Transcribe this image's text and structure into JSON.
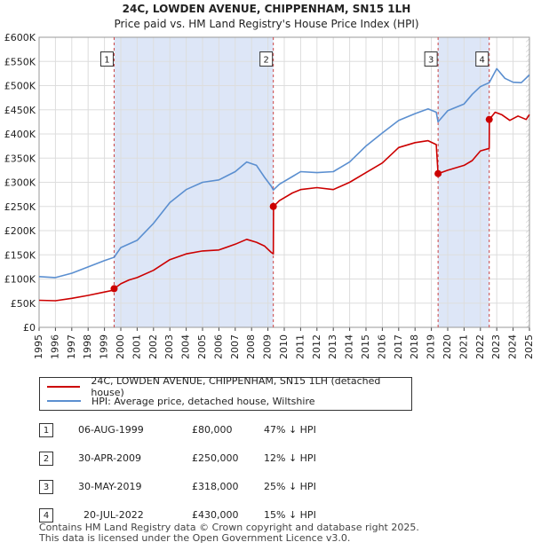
{
  "chart_data": {
    "type": "line",
    "title": "24C, LOWDEN AVENUE, CHIPPENHAM, SN15 1LH",
    "subtitle": "Price paid vs. HM Land Registry's House Price Index (HPI)",
    "xlabel": "",
    "ylabel": "",
    "xlim": [
      1995.0,
      2025.0
    ],
    "ylim": [
      0,
      600000
    ],
    "y_ticks": [
      0,
      50000,
      100000,
      150000,
      200000,
      250000,
      300000,
      350000,
      400000,
      450000,
      500000,
      550000,
      600000
    ],
    "y_tick_labels": [
      "£0",
      "£50K",
      "£100K",
      "£150K",
      "£200K",
      "£250K",
      "£300K",
      "£350K",
      "£400K",
      "£450K",
      "£500K",
      "£550K",
      "£600K"
    ],
    "x_ticks": [
      1995,
      1996,
      1997,
      1998,
      1999,
      2000,
      2001,
      2002,
      2003,
      2004,
      2005,
      2006,
      2007,
      2008,
      2009,
      2010,
      2011,
      2012,
      2013,
      2014,
      2015,
      2016,
      2017,
      2018,
      2019,
      2020,
      2021,
      2022,
      2023,
      2024,
      2025
    ],
    "x_tick_labels": [
      "1995",
      "1996",
      "1997",
      "1998",
      "1999",
      "2000",
      "2001",
      "2002",
      "2003",
      "2004",
      "2005",
      "2006",
      "2007",
      "2008",
      "2009",
      "2010",
      "2011",
      "2012",
      "2013",
      "2014",
      "2015",
      "2016",
      "2017",
      "2018",
      "2019",
      "2020",
      "2021",
      "2022",
      "2023",
      "2024",
      "2025"
    ],
    "grid": true,
    "series": [
      {
        "name": "24C, LOWDEN AVENUE, CHIPPENHAM, SN15 1LH (detached house)",
        "color": "#cc0000",
        "x": [
          1995.0,
          1996.0,
          1997.0,
          1998.0,
          1999.0,
          1999.59,
          1999.6,
          2000.0,
          2000.5,
          2001.0,
          2002.0,
          2003.0,
          2004.0,
          2005.0,
          2006.0,
          2007.0,
          2007.7,
          2008.3,
          2008.8,
          2009.2,
          2009.33,
          2009.34,
          2009.7,
          2010.5,
          2011.0,
          2012.0,
          2013.0,
          2014.0,
          2015.0,
          2016.0,
          2017.0,
          2018.0,
          2018.8,
          2019.3,
          2019.41,
          2019.42,
          2020.0,
          2021.0,
          2021.5,
          2022.0,
          2022.54,
          2022.55,
          2022.9,
          2023.3,
          2023.8,
          2024.3,
          2024.8,
          2025.0
        ],
        "y": [
          56000,
          55000,
          60000,
          66000,
          73000,
          77000,
          80000,
          90000,
          98000,
          103000,
          118000,
          140000,
          152000,
          158000,
          160000,
          172000,
          182000,
          176000,
          168000,
          155000,
          152000,
          250000,
          262000,
          278000,
          285000,
          289000,
          285000,
          300000,
          320000,
          340000,
          372000,
          382000,
          386000,
          378000,
          318000,
          318000,
          325000,
          335000,
          345000,
          365000,
          370000,
          430000,
          445000,
          440000,
          428000,
          437000,
          430000,
          440000
        ]
      },
      {
        "name": "HPI: Average price, detached house, Wiltshire",
        "color": "#5b8fd0",
        "x": [
          1995.0,
          1996.0,
          1997.0,
          1998.0,
          1999.0,
          1999.59,
          2000.0,
          2001.0,
          2002.0,
          2003.0,
          2004.0,
          2005.0,
          2006.0,
          2007.0,
          2007.7,
          2008.3,
          2008.8,
          2009.2,
          2009.33,
          2009.7,
          2010.5,
          2011.0,
          2012.0,
          2013.0,
          2014.0,
          2015.0,
          2016.0,
          2017.0,
          2018.0,
          2018.8,
          2019.3,
          2019.41,
          2020.0,
          2021.0,
          2021.5,
          2022.0,
          2022.54,
          2023.0,
          2023.5,
          2024.0,
          2024.5,
          2025.0
        ],
        "y": [
          105000,
          103000,
          112000,
          125000,
          138000,
          145000,
          165000,
          180000,
          215000,
          258000,
          285000,
          300000,
          305000,
          322000,
          342000,
          335000,
          310000,
          292000,
          284000,
          296000,
          312000,
          322000,
          320000,
          322000,
          342000,
          375000,
          402000,
          428000,
          442000,
          452000,
          445000,
          425000,
          448000,
          462000,
          482000,
          498000,
          506000,
          535000,
          515000,
          507000,
          506000,
          522000
        ]
      }
    ],
    "annotations": [
      {
        "label": "1",
        "x": 1999.59,
        "y": 80000,
        "box_y": 555000
      },
      {
        "label": "2",
        "x": 2009.33,
        "y": 250000,
        "box_y": 555000
      },
      {
        "label": "3",
        "x": 2019.41,
        "y": 318000,
        "box_y": 555000
      },
      {
        "label": "4",
        "x": 2022.54,
        "y": 430000,
        "box_y": 555000
      }
    ],
    "shaded_spans": [
      [
        1999.59,
        2009.33
      ],
      [
        2019.41,
        2022.54
      ]
    ],
    "hatched_after": 2024.8
  },
  "legend": {
    "property_label": "24C, LOWDEN AVENUE, CHIPPENHAM, SN15 1LH (detached house)",
    "hpi_label": "HPI: Average price, detached house, Wiltshire",
    "property_color": "#cc0000",
    "hpi_color": "#5b8fd0"
  },
  "transactions": [
    {
      "num": "1",
      "date": "06-AUG-1999",
      "price": "£80,000",
      "hpi": "47% ↓ HPI"
    },
    {
      "num": "2",
      "date": "30-APR-2009",
      "price": "£250,000",
      "hpi": "12% ↓ HPI"
    },
    {
      "num": "3",
      "date": "30-MAY-2019",
      "price": "£318,000",
      "hpi": "25% ↓ HPI"
    },
    {
      "num": "4",
      "date": "20-JUL-2022",
      "price": "£430,000",
      "hpi": "15% ↓ HPI"
    }
  ],
  "footer": {
    "line1": "Contains HM Land Registry data © Crown copyright and database right 2025.",
    "line2": "This data is licensed under the Open Government Licence v3.0."
  },
  "colors": {
    "plot_bg": "#ffffff",
    "shade": "#dde6f7",
    "grid": "#dddddd",
    "marker_line": "#cc4444"
  }
}
